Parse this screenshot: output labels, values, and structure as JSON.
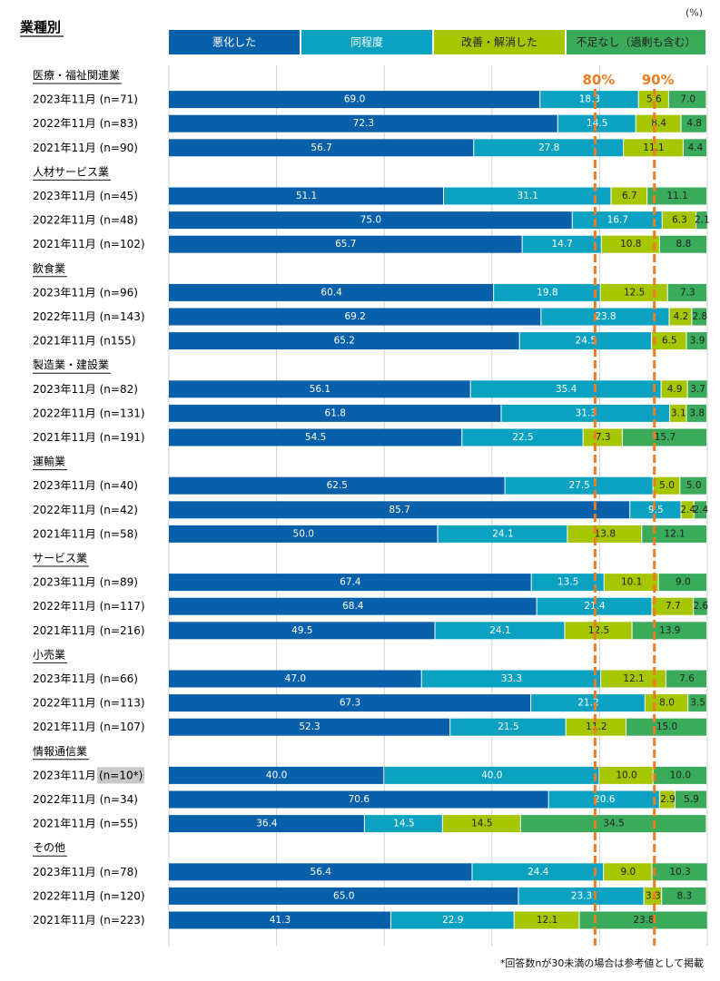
{
  "chart_data": {
    "type": "bar",
    "orientation": "horizontal",
    "stacked": true,
    "title": "業種別",
    "unit_label": "(%)",
    "xlim": [
      0,
      100
    ],
    "reference_lines": [
      {
        "value": 80,
        "label": "80%"
      },
      {
        "value": 90,
        "label": "90%"
      }
    ],
    "legend": [
      {
        "name": "悪化した",
        "color": "#0860aa",
        "text_color": "#ffffff"
      },
      {
        "name": "同程度",
        "color": "#0aa2c0",
        "text_color": "#ffffff"
      },
      {
        "name": "改善・解消した",
        "color": "#a5c600",
        "text_color": "#222222"
      },
      {
        "name": "不足なし（過剰も含む）",
        "color": "#3aab5a",
        "text_color": "#222222"
      }
    ],
    "groups": [
      {
        "name": "医療・福祉関連業",
        "rows": [
          {
            "label": "2023年11月 (n=71)",
            "values": [
              69.0,
              18.3,
              5.6,
              7.0
            ]
          },
          {
            "label": "2022年11月 (n=83)",
            "values": [
              72.3,
              14.5,
              8.4,
              4.8
            ]
          },
          {
            "label": "2021年11月 (n=90)",
            "values": [
              56.7,
              27.8,
              11.1,
              4.4
            ]
          }
        ]
      },
      {
        "name": "人材サービス業",
        "rows": [
          {
            "label": "2023年11月 (n=45)",
            "values": [
              51.1,
              31.1,
              6.7,
              11.1
            ]
          },
          {
            "label": "2022年11月 (n=48)",
            "values": [
              75.0,
              16.7,
              6.3,
              2.1
            ]
          },
          {
            "label": "2021年11月 (n=102)",
            "values": [
              65.7,
              14.7,
              10.8,
              8.8
            ]
          }
        ]
      },
      {
        "name": "飲食業",
        "rows": [
          {
            "label": "2023年11月 (n=96)",
            "values": [
              60.4,
              19.8,
              12.5,
              7.3
            ]
          },
          {
            "label": "2022年11月 (n=143)",
            "values": [
              69.2,
              23.8,
              4.2,
              2.8
            ]
          },
          {
            "label": "2021年11月 (n155)",
            "values": [
              65.2,
              24.5,
              6.5,
              3.9
            ]
          }
        ]
      },
      {
        "name": "製造業・建設業",
        "rows": [
          {
            "label": "2023年11月 (n=82)",
            "values": [
              56.1,
              35.4,
              4.9,
              3.7
            ]
          },
          {
            "label": "2022年11月 (n=131)",
            "values": [
              61.8,
              31.3,
              3.1,
              3.8
            ]
          },
          {
            "label": "2021年11月 (n=191)",
            "values": [
              54.5,
              22.5,
              7.3,
              15.7
            ]
          }
        ]
      },
      {
        "name": "運輸業",
        "rows": [
          {
            "label": "2023年11月 (n=40)",
            "values": [
              62.5,
              27.5,
              5.0,
              5.0
            ]
          },
          {
            "label": "2022年11月 (n=42)",
            "values": [
              85.7,
              9.5,
              2.4,
              2.4
            ]
          },
          {
            "label": "2021年11月 (n=58)",
            "values": [
              50.0,
              24.1,
              13.8,
              12.1
            ]
          }
        ]
      },
      {
        "name": "サービス業",
        "rows": [
          {
            "label": "2023年11月 (n=89)",
            "values": [
              67.4,
              13.5,
              10.1,
              9.0
            ]
          },
          {
            "label": "2022年11月 (n=117)",
            "values": [
              68.4,
              21.4,
              7.7,
              2.6
            ]
          },
          {
            "label": "2021年11月 (n=216)",
            "values": [
              49.5,
              24.1,
              12.5,
              13.9
            ]
          }
        ]
      },
      {
        "name": "小売業",
        "rows": [
          {
            "label": "2023年11月 (n=66)",
            "values": [
              47.0,
              33.3,
              12.1,
              7.6
            ]
          },
          {
            "label": "2022年11月 (n=113)",
            "values": [
              67.3,
              21.2,
              8.0,
              3.5
            ]
          },
          {
            "label": "2021年11月 (n=107)",
            "values": [
              52.3,
              21.5,
              11.2,
              15.0
            ]
          }
        ]
      },
      {
        "name": "情報通信業",
        "rows": [
          {
            "label": "2023年11月 (n=10*)",
            "values": [
              40.0,
              40.0,
              10.0,
              10.0
            ],
            "highlight_n": true
          },
          {
            "label": "2022年11月 (n=34)",
            "values": [
              70.6,
              20.6,
              2.9,
              5.9
            ]
          },
          {
            "label": "2021年11月 (n=55)",
            "values": [
              36.4,
              14.5,
              14.5,
              34.5
            ]
          }
        ]
      },
      {
        "name": "その他",
        "rows": [
          {
            "label": "2023年11月 (n=78)",
            "values": [
              56.4,
              24.4,
              9.0,
              10.3
            ]
          },
          {
            "label": "2022年11月 (n=120)",
            "values": [
              65.0,
              23.3,
              3.3,
              8.3
            ]
          },
          {
            "label": "2021年11月 (n=223)",
            "values": [
              41.3,
              22.9,
              12.1,
              23.8
            ]
          }
        ]
      }
    ],
    "footnote": "*回答数nが30未満の場合は参考値として掲載"
  }
}
